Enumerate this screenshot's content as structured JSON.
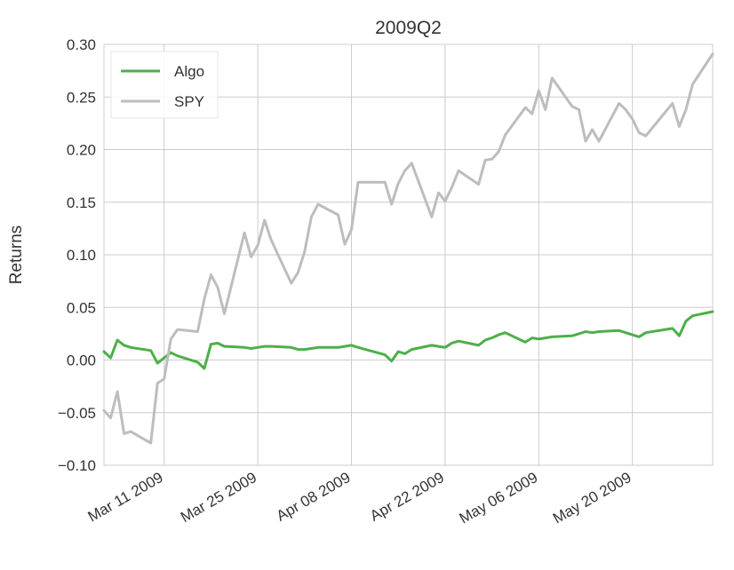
{
  "chart_data": {
    "type": "line",
    "title": "2009Q2",
    "xlabel": "",
    "ylabel": "Returns",
    "ylim": [
      -0.1,
      0.3
    ],
    "xlim": [
      "2009-03-02",
      "2009-06-01"
    ],
    "grid": true,
    "legend_position": "top-left",
    "y_ticks": [
      "−0.10",
      "−0.05",
      "0.00",
      "0.05",
      "0.10",
      "0.15",
      "0.20",
      "0.25",
      "0.30"
    ],
    "y_tick_values": [
      -0.1,
      -0.05,
      0.0,
      0.05,
      0.1,
      0.15,
      0.2,
      0.25,
      0.3
    ],
    "x_ticks": [
      {
        "date": "2009-03-11",
        "label": "Mar 11 2009"
      },
      {
        "date": "2009-03-25",
        "label": "Mar 25 2009"
      },
      {
        "date": "2009-04-08",
        "label": "Apr 08 2009"
      },
      {
        "date": "2009-04-22",
        "label": "Apr 22 2009"
      },
      {
        "date": "2009-05-06",
        "label": "May 06 2009"
      },
      {
        "date": "2009-05-20",
        "label": "May 20 2009"
      }
    ],
    "series": [
      {
        "name": "Algo",
        "color": "#4daf4a",
        "x": [
          "2009-03-02",
          "2009-03-03",
          "2009-03-04",
          "2009-03-05",
          "2009-03-06",
          "2009-03-09",
          "2009-03-10",
          "2009-03-11",
          "2009-03-12",
          "2009-03-13",
          "2009-03-16",
          "2009-03-17",
          "2009-03-18",
          "2009-03-19",
          "2009-03-20",
          "2009-03-23",
          "2009-03-24",
          "2009-03-25",
          "2009-03-26",
          "2009-03-27",
          "2009-03-30",
          "2009-03-31",
          "2009-04-01",
          "2009-04-02",
          "2009-04-03",
          "2009-04-06",
          "2009-04-07",
          "2009-04-08",
          "2009-04-09",
          "2009-04-13",
          "2009-04-14",
          "2009-04-15",
          "2009-04-16",
          "2009-04-17",
          "2009-04-20",
          "2009-04-21",
          "2009-04-22",
          "2009-04-23",
          "2009-04-24",
          "2009-04-27",
          "2009-04-28",
          "2009-04-29",
          "2009-04-30",
          "2009-05-01",
          "2009-05-04",
          "2009-05-05",
          "2009-05-06",
          "2009-05-07",
          "2009-05-08",
          "2009-05-11",
          "2009-05-12",
          "2009-05-13",
          "2009-05-14",
          "2009-05-15",
          "2009-05-18",
          "2009-05-19",
          "2009-05-20",
          "2009-05-21",
          "2009-05-22",
          "2009-05-26",
          "2009-05-27",
          "2009-05-28",
          "2009-05-29",
          "2009-06-01"
        ],
        "values": [
          0.008,
          0.002,
          0.019,
          0.014,
          0.012,
          0.009,
          -0.003,
          0.002,
          0.007,
          0.004,
          -0.002,
          -0.008,
          0.015,
          0.016,
          0.013,
          0.012,
          0.011,
          0.012,
          0.013,
          0.013,
          0.012,
          0.01,
          0.01,
          0.011,
          0.012,
          0.012,
          0.013,
          0.014,
          0.012,
          0.005,
          -0.001,
          0.008,
          0.006,
          0.01,
          0.014,
          0.013,
          0.012,
          0.016,
          0.018,
          0.014,
          0.019,
          0.021,
          0.024,
          0.026,
          0.017,
          0.021,
          0.02,
          0.021,
          0.022,
          0.023,
          0.025,
          0.027,
          0.026,
          0.027,
          0.028,
          0.026,
          0.024,
          0.022,
          0.026,
          0.03,
          0.023,
          0.037,
          0.042,
          0.046
        ]
      },
      {
        "name": "SPY",
        "color": "#bdbdbd",
        "x": [
          "2009-03-02",
          "2009-03-03",
          "2009-03-04",
          "2009-03-05",
          "2009-03-06",
          "2009-03-09",
          "2009-03-10",
          "2009-03-11",
          "2009-03-12",
          "2009-03-13",
          "2009-03-16",
          "2009-03-17",
          "2009-03-18",
          "2009-03-19",
          "2009-03-20",
          "2009-03-23",
          "2009-03-24",
          "2009-03-25",
          "2009-03-26",
          "2009-03-27",
          "2009-03-30",
          "2009-03-31",
          "2009-04-01",
          "2009-04-02",
          "2009-04-03",
          "2009-04-06",
          "2009-04-07",
          "2009-04-08",
          "2009-04-09",
          "2009-04-13",
          "2009-04-14",
          "2009-04-15",
          "2009-04-16",
          "2009-04-17",
          "2009-04-20",
          "2009-04-21",
          "2009-04-22",
          "2009-04-23",
          "2009-04-24",
          "2009-04-27",
          "2009-04-28",
          "2009-04-29",
          "2009-04-30",
          "2009-05-01",
          "2009-05-04",
          "2009-05-05",
          "2009-05-06",
          "2009-05-07",
          "2009-05-08",
          "2009-05-11",
          "2009-05-12",
          "2009-05-13",
          "2009-05-14",
          "2009-05-15",
          "2009-05-18",
          "2009-05-19",
          "2009-05-20",
          "2009-05-21",
          "2009-05-22",
          "2009-05-26",
          "2009-05-27",
          "2009-05-28",
          "2009-05-29",
          "2009-06-01"
        ],
        "values": [
          -0.048,
          -0.055,
          -0.03,
          -0.07,
          -0.068,
          -0.079,
          -0.022,
          -0.018,
          0.02,
          0.029,
          0.027,
          0.058,
          0.081,
          0.069,
          0.044,
          0.121,
          0.098,
          0.109,
          0.133,
          0.114,
          0.073,
          0.083,
          0.103,
          0.136,
          0.148,
          0.138,
          0.11,
          0.124,
          0.169,
          0.169,
          0.148,
          0.168,
          0.18,
          0.187,
          0.136,
          0.159,
          0.151,
          0.164,
          0.18,
          0.167,
          0.19,
          0.191,
          0.198,
          0.214,
          0.24,
          0.234,
          0.256,
          0.238,
          0.268,
          0.241,
          0.238,
          0.208,
          0.219,
          0.208,
          0.244,
          0.238,
          0.229,
          0.216,
          0.213,
          0.244,
          0.222,
          0.238,
          0.262,
          0.291
        ]
      }
    ]
  }
}
